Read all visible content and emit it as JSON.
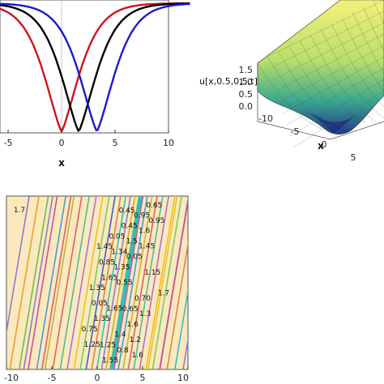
{
  "chart_data": [
    {
      "type": "line",
      "panel": "top-left",
      "xlabel": "x",
      "xlim": [
        -10,
        10
      ],
      "ylim": [
        0,
        1
      ],
      "x_ticks": [
        "-5",
        "0",
        "5",
        "10"
      ],
      "series": [
        {
          "color": "#d0131a",
          "center": 0
        },
        {
          "color": "#000000",
          "center": 1.6
        },
        {
          "color": "#1a1ad0",
          "center": 3.3
        }
      ],
      "curve_width": 0.35
    },
    {
      "type": "surface",
      "panel": "top-right",
      "zlabel": "u[x,0.5,0.5,t]",
      "xlabel": "x",
      "z_ticks": [
        "1.5",
        "1.0",
        "0.5",
        "0.0"
      ],
      "x_ticks": [
        "-10",
        "-5",
        "0",
        "5"
      ]
    },
    {
      "type": "contour",
      "panel": "bottom",
      "xlim": [
        -10,
        10
      ],
      "x_ticks": [
        "-10",
        "-5",
        "0",
        "5",
        "10"
      ],
      "background": "#fbe9bd",
      "contour_labels": [
        "1.7",
        "1.65",
        "1.45",
        "1.25",
        "0.55",
        "0.95",
        "1.35",
        "0.05",
        "1.6",
        "1.7",
        "1.6",
        "0.75",
        "1.35",
        "0.65",
        "0.05",
        "1.5",
        "1.2",
        "1.65",
        "0.95",
        "1.3",
        "1.34",
        "0.8",
        "1.35",
        "0.45",
        "1.6",
        "0.85",
        "1.55",
        "0.70",
        "0.05",
        "1.4",
        "1.15",
        "0.45",
        "0.65",
        "1.45",
        "1.25"
      ],
      "line_colors": [
        "#8c7ad6",
        "#e8a030",
        "#6cc04a",
        "#d05090",
        "#4a9ad0",
        "#c8b040",
        "#e06060",
        "#50b8a0",
        "#b070d0",
        "#f0c020",
        "#70d060",
        "#4060c0",
        "#e08050",
        "#30c0c0"
      ]
    }
  ]
}
